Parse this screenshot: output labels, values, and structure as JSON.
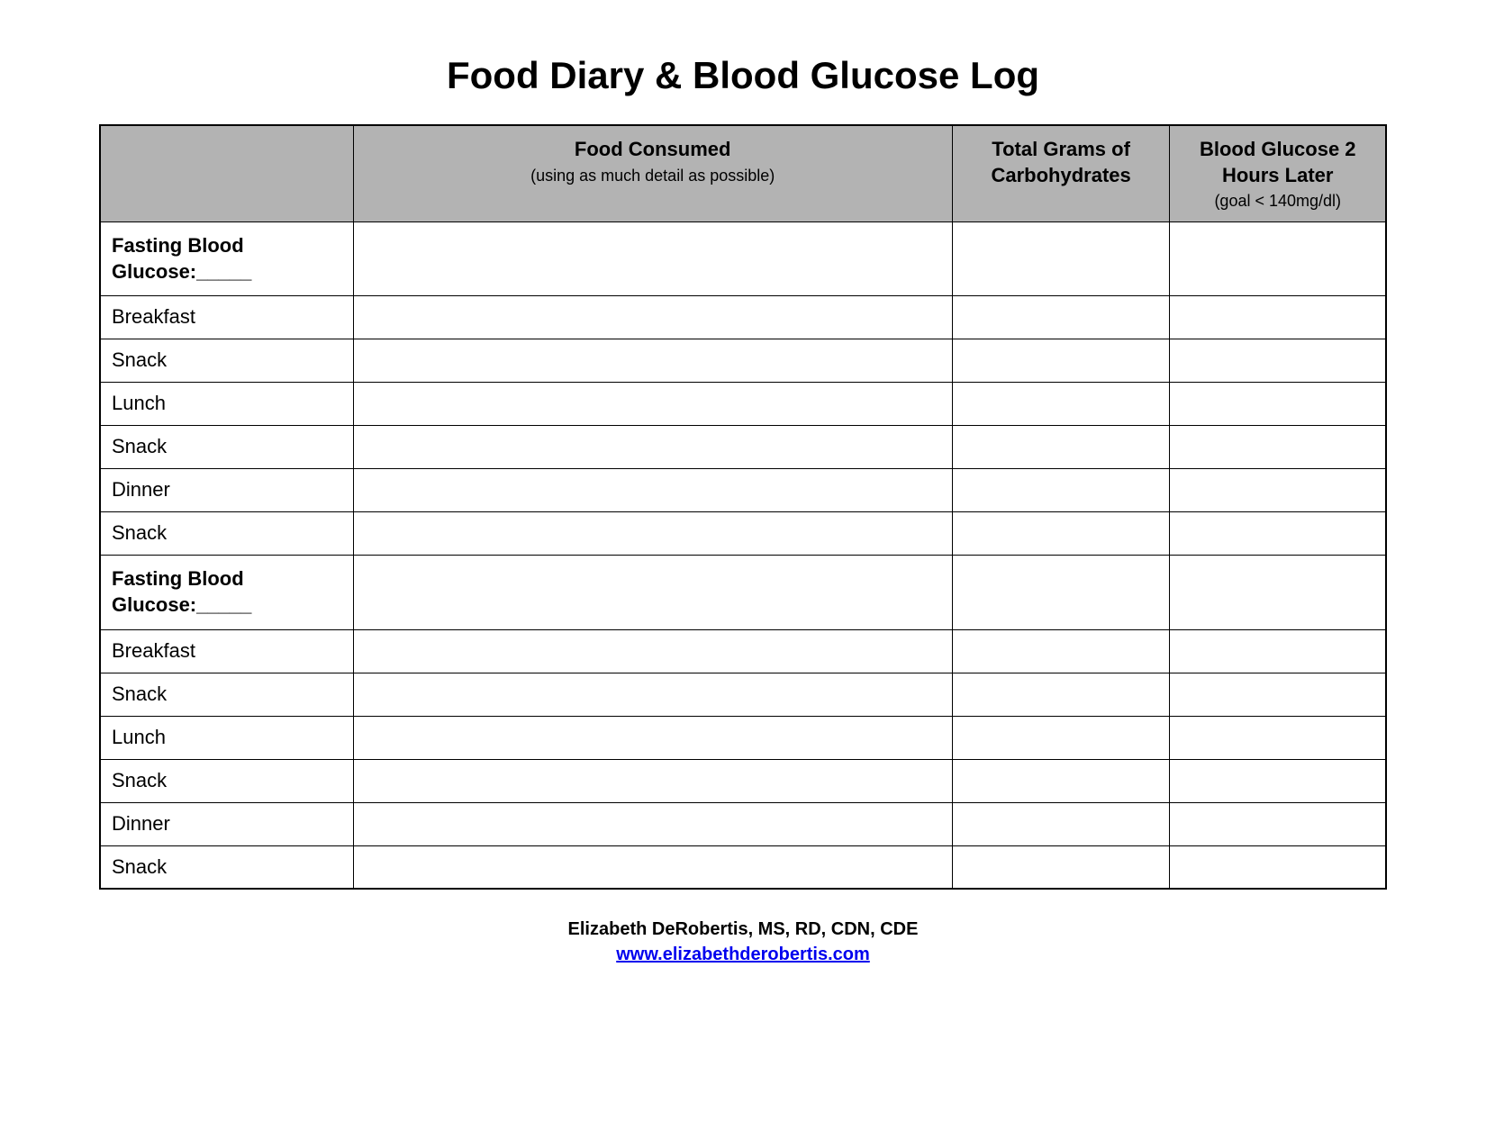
{
  "title": "Food Diary & Blood Glucose Log",
  "table": {
    "header_bg_color": "#b3b3b3",
    "border_color": "#000000",
    "columns": [
      {
        "main": "",
        "sub": ""
      },
      {
        "main": "Food Consumed",
        "sub": "(using as much detail as possible)"
      },
      {
        "main": "Total Grams of Carbohydrates",
        "sub": ""
      },
      {
        "main": "Blood Glucose 2 Hours Later",
        "sub": "(goal < 140mg/dl)"
      }
    ],
    "rows": [
      {
        "label": "Fasting Blood Glucose:_____",
        "bold": true,
        "food": "",
        "carbs": "",
        "glucose": ""
      },
      {
        "label": "Breakfast",
        "bold": false,
        "food": "",
        "carbs": "",
        "glucose": ""
      },
      {
        "label": "Snack",
        "bold": false,
        "food": "",
        "carbs": "",
        "glucose": ""
      },
      {
        "label": "Lunch",
        "bold": false,
        "food": "",
        "carbs": "",
        "glucose": ""
      },
      {
        "label": "Snack",
        "bold": false,
        "food": "",
        "carbs": "",
        "glucose": ""
      },
      {
        "label": "Dinner",
        "bold": false,
        "food": "",
        "carbs": "",
        "glucose": ""
      },
      {
        "label": "Snack",
        "bold": false,
        "food": "",
        "carbs": "",
        "glucose": ""
      },
      {
        "label": "Fasting Blood Glucose:_____",
        "bold": true,
        "food": "",
        "carbs": "",
        "glucose": ""
      },
      {
        "label": "Breakfast",
        "bold": false,
        "food": "",
        "carbs": "",
        "glucose": ""
      },
      {
        "label": "Snack",
        "bold": false,
        "food": "",
        "carbs": "",
        "glucose": ""
      },
      {
        "label": "Lunch",
        "bold": false,
        "food": "",
        "carbs": "",
        "glucose": ""
      },
      {
        "label": "Snack",
        "bold": false,
        "food": "",
        "carbs": "",
        "glucose": ""
      },
      {
        "label": "Dinner",
        "bold": false,
        "food": "",
        "carbs": "",
        "glucose": ""
      },
      {
        "label": "Snack",
        "bold": false,
        "food": "",
        "carbs": "",
        "glucose": ""
      }
    ]
  },
  "footer": {
    "author": "Elizabeth DeRobertis, MS, RD, CDN, CDE",
    "link_text": "www.elizabethderobertis.com"
  }
}
